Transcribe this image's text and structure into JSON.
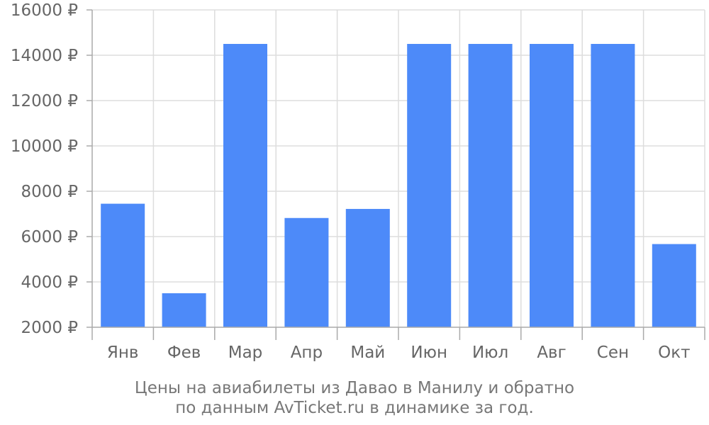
{
  "chart_data": {
    "type": "bar",
    "categories": [
      "Янв",
      "Фев",
      "Мар",
      "Апр",
      "Май",
      "Июн",
      "Июл",
      "Авг",
      "Сен",
      "Окт"
    ],
    "values": [
      7450,
      3500,
      14500,
      6820,
      7220,
      14500,
      14500,
      14500,
      14500,
      5670
    ],
    "ylim": [
      2000,
      16000
    ],
    "yticks": [
      2000,
      4000,
      6000,
      8000,
      10000,
      12000,
      14000,
      16000
    ],
    "ytick_suffix": " ₽",
    "grid": true,
    "bar_color": "#4d8af9",
    "grid_color": "#dddddd",
    "axis_color": "#aaaaaa",
    "label_color": "#666666"
  },
  "caption": {
    "line1": "Цены на авиабилеты из Давао в Манилу и обратно",
    "line2": "по данным AvTicket.ru в динамике за год."
  }
}
